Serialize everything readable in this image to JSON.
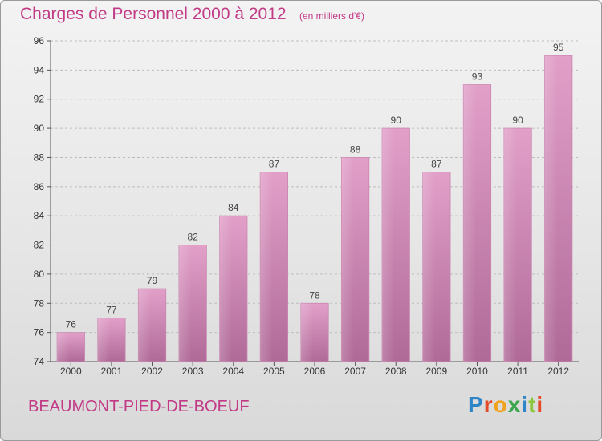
{
  "header": {
    "title": "Charges de Personnel 2000 à 2012",
    "subtitle": "(en milliers d'€)"
  },
  "footer": {
    "commune": "BEAUMONT-PIED-DE-BOEUF",
    "logo_letters": [
      "P",
      "r",
      "o",
      "x",
      "i",
      "t",
      "i"
    ]
  },
  "colors": {
    "bar_top": "#e2a0c9",
    "bar_bottom": "#b06a98",
    "title": "#c23a86"
  },
  "chart_data": {
    "type": "bar",
    "categories": [
      "2000",
      "2001",
      "2002",
      "2003",
      "2004",
      "2005",
      "2006",
      "2007",
      "2008",
      "2009",
      "2010",
      "2011",
      "2012"
    ],
    "values": [
      76,
      77,
      79,
      82,
      84,
      87,
      78,
      88,
      90,
      87,
      93,
      90,
      95
    ],
    "title": "Charges de Personnel 2000 à 2012",
    "subtitle": "(en milliers d'€)",
    "xlabel": "",
    "ylabel": "",
    "ylim": [
      74,
      96
    ],
    "yticks": [
      74,
      76,
      78,
      80,
      82,
      84,
      86,
      88,
      90,
      92,
      94,
      96
    ],
    "grid": true,
    "legend": "none"
  }
}
